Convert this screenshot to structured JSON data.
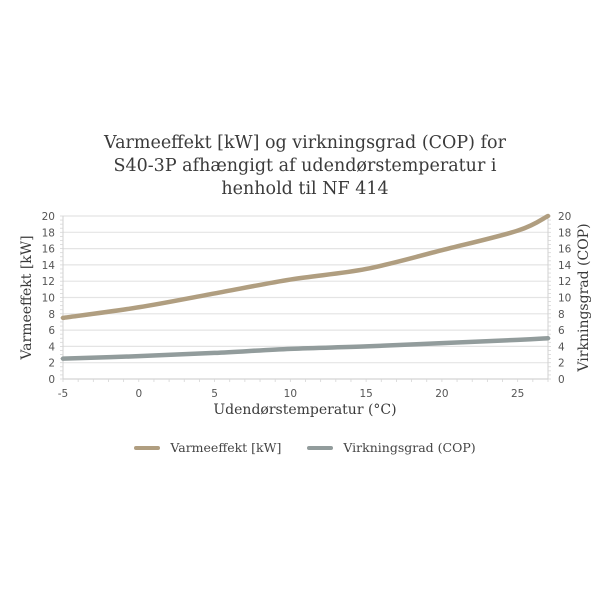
{
  "chart_data": {
    "type": "line",
    "title": "Varmeeffekt [kW] og virkningsgrad (COP) for S40-3P afhængigt af udendørstemperatur i henhold til NF 414",
    "title_lines": [
      "Varmeeffekt [kW] og virkningsgrad (COP) for",
      "S40-3P afhængigt af udendørstemperatur i",
      "henhold til NF 414"
    ],
    "xlabel": "Udendørstemperatur (°C)",
    "ylabel": "Varmeeffekt [kW]",
    "y2label": "Virkningsgrad (COP)",
    "xlim": [
      -5,
      27
    ],
    "ylim": [
      0,
      20
    ],
    "y2lim": [
      0,
      20
    ],
    "x_ticks": [
      -5,
      0,
      5,
      10,
      15,
      20,
      25
    ],
    "y_ticks": [
      0,
      2,
      4,
      6,
      8,
      10,
      12,
      14,
      16,
      18,
      20
    ],
    "y2_ticks": [
      0,
      2,
      4,
      6,
      8,
      10,
      12,
      14,
      16,
      18,
      20
    ],
    "grid": "horizontal",
    "legend_position": "bottom",
    "x": [
      -5,
      0,
      5,
      10,
      15,
      20,
      25,
      27
    ],
    "series": [
      {
        "name": "Varmeeffekt [kW]",
        "axis": "left",
        "color": "#b09e80",
        "values": [
          7.5,
          8.8,
          10.5,
          12.2,
          13.5,
          15.8,
          18.2,
          20.0
        ]
      },
      {
        "name": "Virkningsgrad (COP)",
        "axis": "right",
        "color": "#929c9c",
        "values": [
          2.5,
          2.8,
          3.2,
          3.7,
          4.0,
          4.4,
          4.8,
          5.0
        ]
      }
    ]
  }
}
